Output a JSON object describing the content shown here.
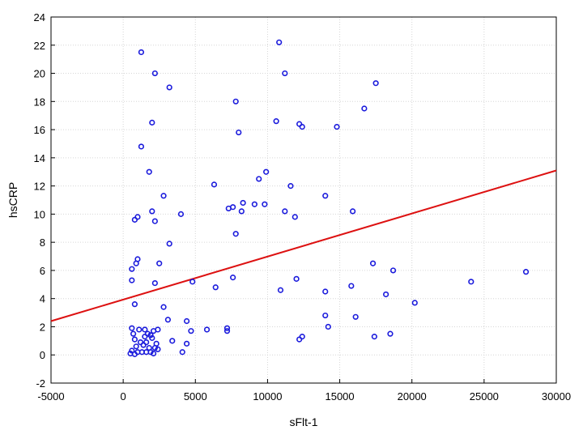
{
  "chart_data": {
    "type": "scatter",
    "title": "",
    "xlabel": "sFlt-1",
    "ylabel": "hsCRP",
    "xlim": [
      -5000,
      30000
    ],
    "ylim": [
      -2,
      24
    ],
    "xticks": [
      -5000,
      0,
      5000,
      10000,
      15000,
      20000,
      25000,
      30000
    ],
    "yticks": [
      -2,
      0,
      2,
      4,
      6,
      8,
      10,
      12,
      14,
      16,
      18,
      20,
      22,
      24
    ],
    "grid": true,
    "marker_color": "#1a1adc",
    "line_color": "#dd1111",
    "fit_line": {
      "x": [
        -5000,
        30000
      ],
      "y": [
        2.4,
        13.1
      ]
    },
    "points": [
      [
        1250,
        21.5
      ],
      [
        2200,
        20.0
      ],
      [
        3200,
        19.0
      ],
      [
        2000,
        16.5
      ],
      [
        1250,
        14.8
      ],
      [
        1800,
        13.0
      ],
      [
        2800,
        11.3
      ],
      [
        2000,
        10.2
      ],
      [
        1000,
        9.8
      ],
      [
        800,
        9.6
      ],
      [
        2200,
        9.5
      ],
      [
        4000,
        10.0
      ],
      [
        3200,
        7.9
      ],
      [
        1000,
        6.8
      ],
      [
        900,
        6.5
      ],
      [
        2500,
        6.5
      ],
      [
        600,
        6.1
      ],
      [
        600,
        5.3
      ],
      [
        2200,
        5.1
      ],
      [
        4800,
        5.2
      ],
      [
        800,
        3.6
      ],
      [
        2800,
        3.4
      ],
      [
        3100,
        2.5
      ],
      [
        600,
        1.9
      ],
      [
        700,
        1.5
      ],
      [
        800,
        1.1
      ],
      [
        1100,
        1.8
      ],
      [
        1500,
        1.8
      ],
      [
        1700,
        1.5
      ],
      [
        2100,
        1.7
      ],
      [
        2400,
        1.8
      ],
      [
        1500,
        1.3
      ],
      [
        1900,
        1.4
      ],
      [
        1200,
        0.9
      ],
      [
        1600,
        0.9
      ],
      [
        2000,
        1.2
      ],
      [
        2300,
        0.8
      ],
      [
        900,
        0.6
      ],
      [
        1400,
        0.7
      ],
      [
        1800,
        0.5
      ],
      [
        2200,
        0.5
      ],
      [
        600,
        0.3
      ],
      [
        1000,
        0.2
      ],
      [
        1300,
        0.2
      ],
      [
        1600,
        0.2
      ],
      [
        1900,
        0.2
      ],
      [
        2100,
        0.1
      ],
      [
        2400,
        0.4
      ],
      [
        500,
        0.1
      ],
      [
        800,
        0.05
      ],
      [
        4400,
        2.4
      ],
      [
        4700,
        1.7
      ],
      [
        3400,
        1.0
      ],
      [
        4400,
        0.8
      ],
      [
        4100,
        0.2
      ],
      [
        5800,
        1.8
      ],
      [
        7200,
        1.9
      ],
      [
        7200,
        1.7
      ],
      [
        6400,
        4.8
      ],
      [
        7600,
        5.5
      ],
      [
        10800,
        22.2
      ],
      [
        11200,
        20.0
      ],
      [
        7800,
        18.0
      ],
      [
        8000,
        15.8
      ],
      [
        10600,
        16.6
      ],
      [
        12200,
        16.4
      ],
      [
        12400,
        16.2
      ],
      [
        14800,
        16.2
      ],
      [
        17500,
        19.3
      ],
      [
        16700,
        17.5
      ],
      [
        9400,
        12.5
      ],
      [
        9900,
        13.0
      ],
      [
        11600,
        12.0
      ],
      [
        6300,
        12.1
      ],
      [
        7300,
        10.4
      ],
      [
        7600,
        10.5
      ],
      [
        8300,
        10.8
      ],
      [
        8200,
        10.2
      ],
      [
        9100,
        10.7
      ],
      [
        9800,
        10.7
      ],
      [
        11200,
        10.2
      ],
      [
        11900,
        9.8
      ],
      [
        7800,
        8.6
      ],
      [
        14000,
        11.3
      ],
      [
        15900,
        10.2
      ],
      [
        17300,
        6.5
      ],
      [
        18700,
        6.0
      ],
      [
        12000,
        5.4
      ],
      [
        10900,
        4.6
      ],
      [
        14000,
        4.5
      ],
      [
        15800,
        4.9
      ],
      [
        18200,
        4.3
      ],
      [
        20200,
        3.7
      ],
      [
        14000,
        2.8
      ],
      [
        16100,
        2.7
      ],
      [
        14200,
        2.0
      ],
      [
        12400,
        1.3
      ],
      [
        12200,
        1.1
      ],
      [
        17400,
        1.3
      ],
      [
        18500,
        1.5
      ],
      [
        24100,
        5.2
      ],
      [
        27900,
        5.9
      ]
    ]
  }
}
